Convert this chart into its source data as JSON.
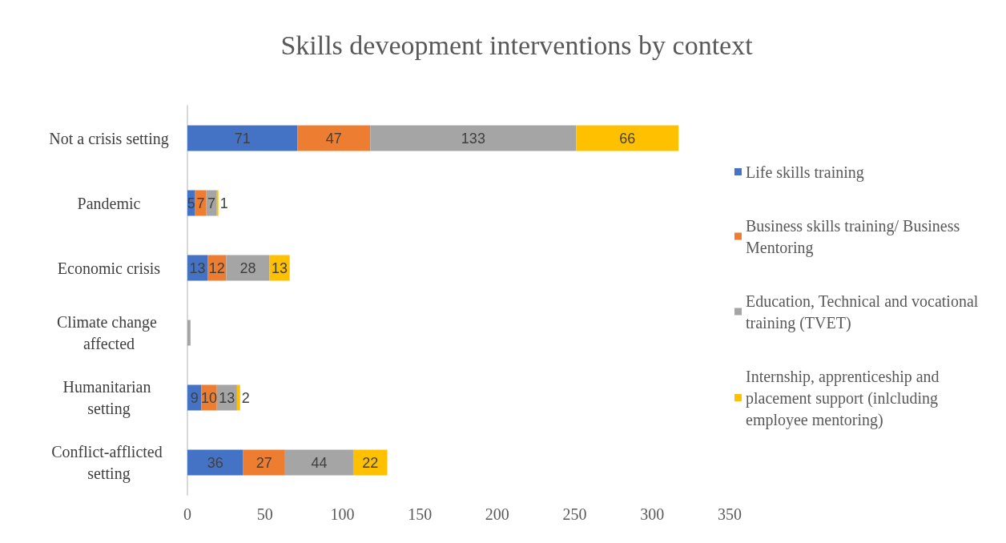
{
  "chart_data": {
    "type": "bar",
    "orientation": "horizontal",
    "stacked": true,
    "title": "Skills deveopment interventions by context",
    "categories": [
      "Not a crisis setting",
      "Pandemic",
      "Economic crisis",
      "Climate change affected",
      "Humanitarian setting",
      "Conflict-afflicted setting"
    ],
    "series": [
      {
        "name": "Life skills training",
        "color": "#4472c4",
        "values": [
          71,
          5,
          13,
          0,
          9,
          36
        ],
        "value_labels": [
          "71",
          "5",
          "13",
          null,
          "9",
          "36"
        ]
      },
      {
        "name": "Business skills training/ Business Mentoring",
        "color": "#ed7d31",
        "values": [
          47,
          7,
          12,
          0,
          10,
          27
        ],
        "value_labels": [
          "47",
          "7",
          "12",
          null,
          "10",
          "27"
        ]
      },
      {
        "name": "Education, Technical and vocational training (TVET)",
        "color": "#a5a5a5",
        "values": [
          133,
          7,
          28,
          2,
          13,
          44
        ],
        "value_labels": [
          "133",
          "7",
          "28",
          null,
          "13",
          "44"
        ]
      },
      {
        "name": "Internship, apprenticeship and placement support (inlcluding employee mentoring)",
        "color": "#ffc000",
        "values": [
          66,
          1,
          13,
          0,
          2,
          22
        ],
        "value_labels": [
          "66",
          "1",
          "13",
          null,
          "2",
          "22"
        ]
      }
    ],
    "xlim": [
      0,
      350
    ],
    "xticks": [
      0,
      50,
      100,
      150,
      200,
      250,
      300,
      350
    ],
    "grid": false,
    "legend": "right"
  }
}
